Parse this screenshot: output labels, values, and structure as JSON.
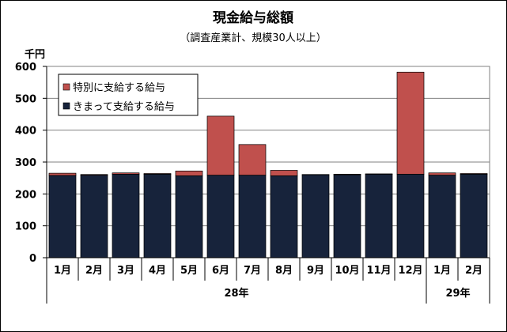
{
  "chart_data": {
    "type": "bar",
    "stacked": true,
    "title": "現金給与総額",
    "subtitle": "（調査産業計、規模30人以上）",
    "ylabel": "千円",
    "ylim": [
      0,
      600
    ],
    "yticks": [
      0,
      100,
      200,
      300,
      400,
      500,
      600
    ],
    "grid": true,
    "legend_position": "top-left",
    "categories": [
      "1月",
      "2月",
      "3月",
      "4月",
      "5月",
      "6月",
      "7月",
      "8月",
      "9月",
      "10月",
      "11月",
      "12月",
      "1月",
      "2月"
    ],
    "groups": [
      {
        "label": "28年",
        "from": 0,
        "to": 11
      },
      {
        "label": "29年",
        "from": 12,
        "to": 13
      }
    ],
    "series": [
      {
        "name": "きまって支給する給与",
        "color": "#17233b",
        "values": [
          258,
          259,
          262,
          262,
          257,
          259,
          259,
          257,
          260,
          260,
          262,
          262,
          259,
          262
        ]
      },
      {
        "name": "特別に支給する給与",
        "color": "#c0504d",
        "values": [
          7,
          2,
          4,
          2,
          15,
          185,
          96,
          17,
          1,
          2,
          1,
          320,
          7,
          2
        ]
      }
    ]
  }
}
